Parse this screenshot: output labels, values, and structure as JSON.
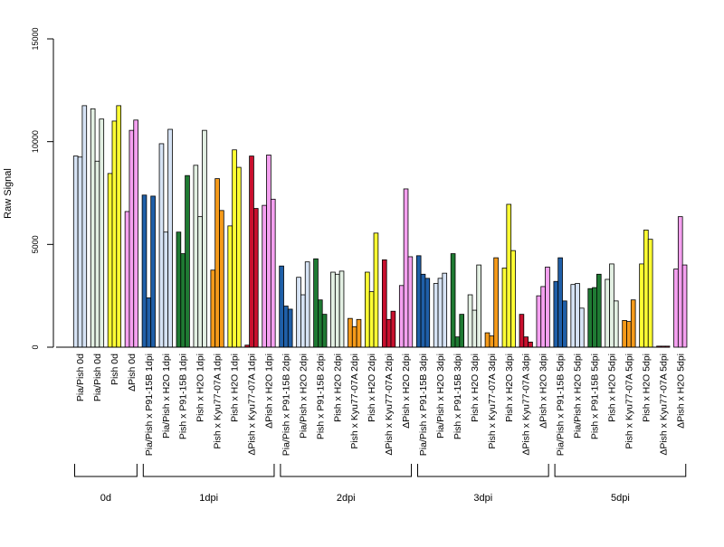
{
  "chart_data": {
    "type": "bar",
    "ylabel": "Raw Signal",
    "xlabel": "",
    "ylim": [
      0,
      15000
    ],
    "yticks": [
      0,
      5000,
      10000,
      15000
    ],
    "categories": [
      "Pia/Pish 0d",
      "Pia/Pish 0d",
      "Pish 0d",
      "ΔPish 0d",
      "Pia/Pish x P91-15B 1dpi",
      "Pia/Pish x H2O 1dpi",
      "Pish x P91-15B 1dpi",
      "Pish x H2O 1dpi",
      "Pish x Kyu77-07A 1dpi",
      "Pish x H2O 1dpi",
      "ΔPish x Kyu77-07A 1dpi",
      "ΔPish x H2O 1dpi",
      "Pia/Pish x P91-15B 2dpi",
      "Pia/Pish x H2O 2dpi",
      "Pish x P91-15B 2dpi",
      "Pish x H2O 2dpi",
      "Pish x Kyu77-07A 2dpi",
      "Pish x H2O 2dpi",
      "ΔPish x Kyu77-07A 2dpi",
      "ΔPish x H2O 2dpi",
      "Pia/Pish x P91-15B 3dpi",
      "Pia/Pish x H2O 3dpi",
      "Pish x P91-15B 3dpi",
      "Pish x H2O 3dpi",
      "Pish x Kyu77-07A 3dpi",
      "Pish x H2O 3dpi",
      "ΔPish x Kyu77-07A 3dpi",
      "ΔPish x H2O 3dpi",
      "Pia/Pish x P91-15B 5dpi",
      "Pia/Pish x H2O 5dpi",
      "Pish x P91-15B 5dpi",
      "Pish x H2O 5dpi",
      "Pish x Kyu77-07A 5dpi",
      "Pish x H2O 5dpi",
      "ΔPish x Kyu77-07A 5dpi",
      "ΔPish x H2O 5dpi"
    ],
    "colors": [
      "#d6e3f5",
      "#e3f0e3",
      "#ffff33",
      "#f5a0f0",
      "#1f5fa8",
      "#d6e3f5",
      "#1f7a33",
      "#e3f0e3",
      "#f59a1a",
      "#ffff33",
      "#c8102e",
      "#f5a0f0",
      "#1f5fa8",
      "#d6e3f5",
      "#1f7a33",
      "#e3f0e3",
      "#f59a1a",
      "#ffff33",
      "#c8102e",
      "#f5a0f0",
      "#1f5fa8",
      "#d6e3f5",
      "#1f7a33",
      "#e3f0e3",
      "#f59a1a",
      "#ffff33",
      "#c8102e",
      "#f5a0f0",
      "#1f5fa8",
      "#d6e3f5",
      "#1f7a33",
      "#e3f0e3",
      "#f59a1a",
      "#ffff33",
      "#c8102e",
      "#f5a0f0"
    ],
    "values": [
      [
        9300,
        9250,
        11750
      ],
      [
        11600,
        9050,
        11100
      ],
      [
        8450,
        11000,
        11750
      ],
      [
        6600,
        10550,
        11050
      ],
      [
        7400,
        2400,
        7350
      ],
      [
        9900,
        5600,
        10600
      ],
      [
        5600,
        4550,
        8350
      ],
      [
        8850,
        6350,
        10550
      ],
      [
        3750,
        8200,
        6650
      ],
      [
        5900,
        9600,
        8750
      ],
      [
        100,
        9300,
        6750
      ],
      [
        6900,
        9350,
        7200
      ],
      [
        3950,
        2000,
        1850
      ],
      [
        3400,
        2550,
        4150
      ],
      [
        4300,
        2300,
        1600
      ],
      [
        3650,
        3550,
        3700
      ],
      [
        1400,
        1000,
        1350
      ],
      [
        3650,
        2700,
        5550
      ],
      [
        4250,
        1350,
        1750
      ],
      [
        3000,
        7700,
        4400
      ],
      [
        4450,
        3550,
        3350
      ],
      [
        3100,
        3350,
        3600
      ],
      [
        4550,
        500,
        1600
      ],
      [
        2550,
        1800,
        4000
      ],
      [
        700,
        550,
        4350
      ],
      [
        3850,
        6950,
        4700
      ],
      [
        1600,
        500,
        250
      ],
      [
        2500,
        2950,
        3900
      ],
      [
        3200,
        4350,
        2250
      ],
      [
        3050,
        3100,
        1900
      ],
      [
        2850,
        2900,
        3550
      ],
      [
        3300,
        4050,
        2250
      ],
      [
        1300,
        1250,
        2300
      ],
      [
        4050,
        5700,
        5250
      ],
      [
        50,
        50,
        50
      ],
      [
        3800,
        6350,
        4000
      ]
    ],
    "groups": [
      {
        "label": "0d",
        "start": 0,
        "end": 3
      },
      {
        "label": "1dpi",
        "start": 4,
        "end": 11
      },
      {
        "label": "2dpi",
        "start": 12,
        "end": 19
      },
      {
        "label": "3dpi",
        "start": 20,
        "end": 27
      },
      {
        "label": "5dpi",
        "start": 28,
        "end": 35
      }
    ],
    "grid": false,
    "legend": "none"
  }
}
